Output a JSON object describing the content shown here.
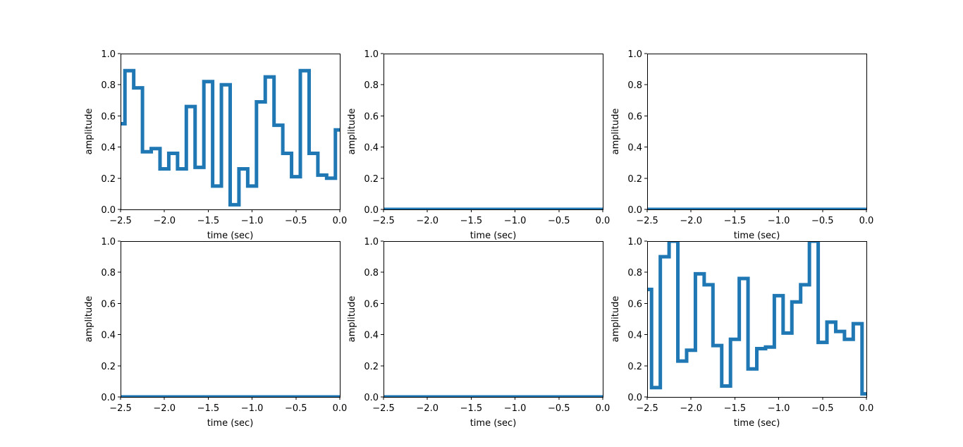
{
  "chart_data": [
    {
      "type": "line",
      "xlabel": "time (sec)",
      "ylabel": "amplitude",
      "xlim": [
        -2.5,
        0.0
      ],
      "ylim": [
        0.0,
        1.0
      ],
      "xticks": [
        "−2.5",
        "−2.0",
        "−1.5",
        "−1.0",
        "−0.5",
        "0.0"
      ],
      "yticks": [
        "0.0",
        "0.2",
        "0.4",
        "0.6",
        "0.8",
        "1.0"
      ],
      "color": "#1f77b4",
      "series": [
        {
          "x": [
            -2.5,
            -2.45,
            -2.45,
            -2.35,
            -2.35,
            -2.25,
            -2.25,
            -2.15,
            -2.15,
            -2.05,
            -2.05,
            -1.95,
            -1.95,
            -1.85,
            -1.85,
            -1.75,
            -1.75,
            -1.65,
            -1.65,
            -1.55,
            -1.55,
            -1.45,
            -1.45,
            -1.35,
            -1.35,
            -1.25,
            -1.25,
            -1.15,
            -1.15,
            -1.05,
            -1.05,
            -0.95,
            -0.95,
            -0.85,
            -0.85,
            -0.75,
            -0.75,
            -0.65,
            -0.65,
            -0.55,
            -0.55,
            -0.45,
            -0.45,
            -0.35,
            -0.35,
            -0.25,
            -0.25,
            -0.15,
            -0.15,
            -0.05,
            -0.05,
            0.0
          ],
          "y": [
            0.55,
            0.55,
            0.89,
            0.89,
            0.78,
            0.78,
            0.37,
            0.37,
            0.39,
            0.39,
            0.26,
            0.26,
            0.36,
            0.36,
            0.26,
            0.26,
            0.66,
            0.66,
            0.27,
            0.27,
            0.82,
            0.82,
            0.15,
            0.15,
            0.8,
            0.8,
            0.03,
            0.03,
            0.26,
            0.26,
            0.15,
            0.15,
            0.69,
            0.69,
            0.85,
            0.85,
            0.54,
            0.54,
            0.36,
            0.36,
            0.21,
            0.21,
            0.89,
            0.89,
            0.36,
            0.36,
            0.22,
            0.22,
            0.2,
            0.2,
            0.51,
            0.51
          ]
        }
      ]
    },
    {
      "type": "line",
      "xlabel": "time (sec)",
      "ylabel": "amplitude",
      "xlim": [
        -2.5,
        0.0
      ],
      "ylim": [
        0.0,
        1.0
      ],
      "xticks": [
        "−2.5",
        "−2.0",
        "−1.5",
        "−1.0",
        "−0.5",
        "0.0"
      ],
      "yticks": [
        "0.0",
        "0.2",
        "0.4",
        "0.6",
        "0.8",
        "1.0"
      ],
      "color": "#1f77b4",
      "series": [
        {
          "x": [
            -2.5,
            0.0
          ],
          "y": [
            0.0,
            0.0
          ]
        }
      ]
    },
    {
      "type": "line",
      "xlabel": "time (sec)",
      "ylabel": "amplitude",
      "xlim": [
        -2.5,
        0.0
      ],
      "ylim": [
        0.0,
        1.0
      ],
      "xticks": [
        "−2.5",
        "−2.0",
        "−1.5",
        "−1.0",
        "−0.5",
        "0.0"
      ],
      "yticks": [
        "0.0",
        "0.2",
        "0.4",
        "0.6",
        "0.8",
        "1.0"
      ],
      "color": "#1f77b4",
      "series": [
        {
          "x": [
            -2.5,
            0.0
          ],
          "y": [
            0.0,
            0.0
          ]
        }
      ]
    },
    {
      "type": "line",
      "xlabel": "time (sec)",
      "ylabel": "amplitude",
      "xlim": [
        -2.5,
        0.0
      ],
      "ylim": [
        0.0,
        1.0
      ],
      "xticks": [
        "−2.5",
        "−2.0",
        "−1.5",
        "−1.0",
        "−0.5",
        "0.0"
      ],
      "yticks": [
        "0.0",
        "0.2",
        "0.4",
        "0.6",
        "0.8",
        "1.0"
      ],
      "color": "#1f77b4",
      "series": [
        {
          "x": [
            -2.5,
            0.0
          ],
          "y": [
            0.0,
            0.0
          ]
        }
      ]
    },
    {
      "type": "line",
      "xlabel": "time (sec)",
      "ylabel": "amplitude",
      "xlim": [
        -2.5,
        0.0
      ],
      "ylim": [
        0.0,
        1.0
      ],
      "xticks": [
        "−2.5",
        "−2.0",
        "−1.5",
        "−1.0",
        "−0.5",
        "0.0"
      ],
      "yticks": [
        "0.0",
        "0.2",
        "0.4",
        "0.6",
        "0.8",
        "1.0"
      ],
      "color": "#1f77b4",
      "series": [
        {
          "x": [
            -2.5,
            0.0
          ],
          "y": [
            0.0,
            0.0
          ]
        }
      ]
    },
    {
      "type": "line",
      "xlabel": "time (sec)",
      "ylabel": "amplitude",
      "xlim": [
        -2.5,
        0.0
      ],
      "ylim": [
        0.0,
        1.0
      ],
      "xticks": [
        "−2.5",
        "−2.0",
        "−1.5",
        "−1.0",
        "−0.5",
        "0.0"
      ],
      "yticks": [
        "0.0",
        "0.2",
        "0.4",
        "0.6",
        "0.8",
        "1.0"
      ],
      "color": "#1f77b4",
      "series": [
        {
          "x": [
            -2.5,
            -2.45,
            -2.45,
            -2.35,
            -2.35,
            -2.25,
            -2.25,
            -2.15,
            -2.15,
            -2.05,
            -2.05,
            -1.95,
            -1.95,
            -1.85,
            -1.85,
            -1.75,
            -1.75,
            -1.65,
            -1.65,
            -1.55,
            -1.55,
            -1.45,
            -1.45,
            -1.35,
            -1.35,
            -1.25,
            -1.25,
            -1.15,
            -1.15,
            -1.05,
            -1.05,
            -0.95,
            -0.95,
            -0.85,
            -0.85,
            -0.75,
            -0.75,
            -0.65,
            -0.65,
            -0.55,
            -0.55,
            -0.45,
            -0.45,
            -0.35,
            -0.35,
            -0.25,
            -0.25,
            -0.15,
            -0.15,
            -0.05,
            -0.05,
            0.0
          ],
          "y": [
            0.69,
            0.69,
            0.06,
            0.06,
            0.9,
            0.9,
            1.0,
            1.0,
            0.23,
            0.23,
            0.3,
            0.3,
            0.79,
            0.79,
            0.72,
            0.72,
            0.33,
            0.33,
            0.07,
            0.07,
            0.37,
            0.37,
            0.76,
            0.76,
            0.18,
            0.18,
            0.31,
            0.31,
            0.32,
            0.32,
            0.65,
            0.65,
            0.41,
            0.41,
            0.61,
            0.61,
            0.72,
            0.72,
            1.0,
            1.0,
            0.35,
            0.35,
            0.48,
            0.48,
            0.42,
            0.42,
            0.37,
            0.37,
            0.47,
            0.47,
            0.02,
            0.02
          ]
        }
      ]
    }
  ]
}
